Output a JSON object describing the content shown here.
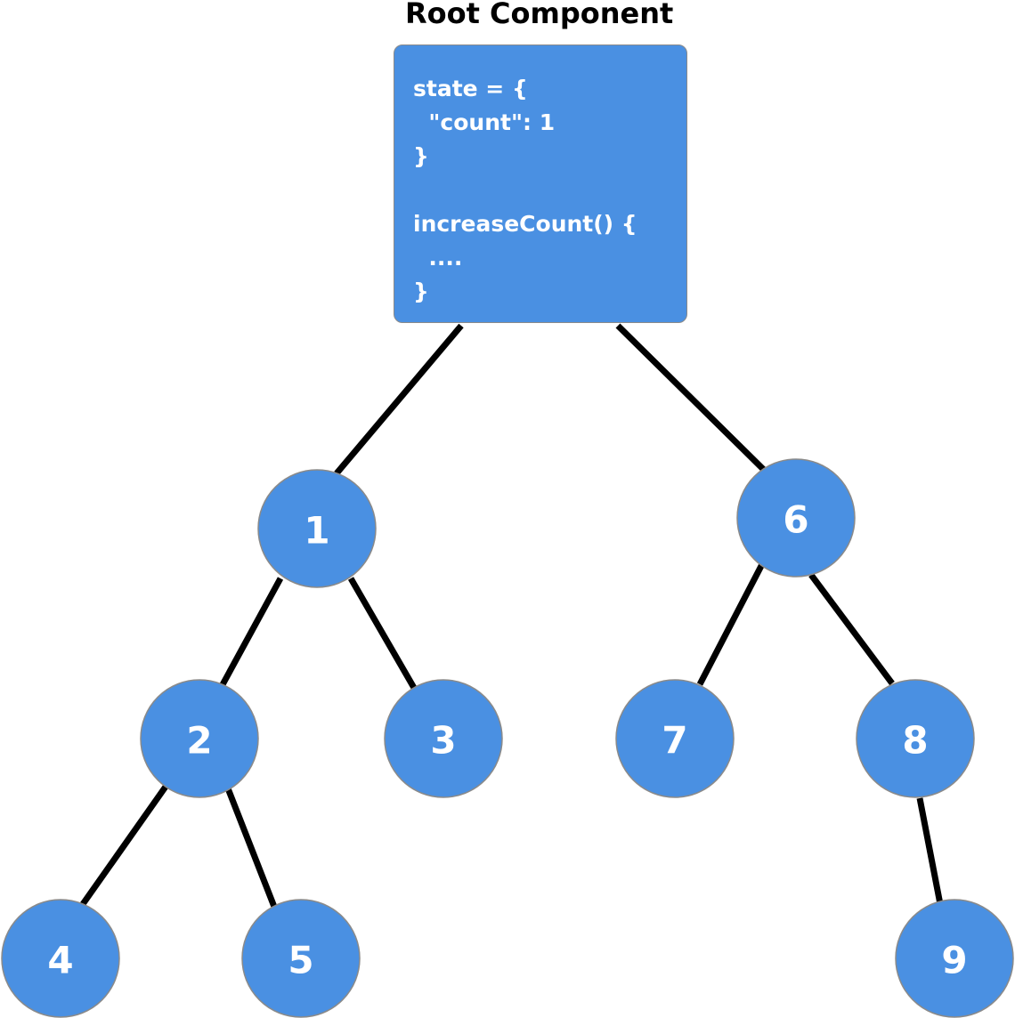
{
  "colors": {
    "node_fill": "#4a90e2",
    "edge": "#000000",
    "text": "#ffffff"
  },
  "root": {
    "title": "Root Component",
    "code_lines": [
      "state = {",
      "  \"count\": 1",
      "}",
      "",
      "increaseCount() {",
      "  ....",
      "}"
    ]
  },
  "nodes": [
    {
      "id": "1",
      "label": "1"
    },
    {
      "id": "2",
      "label": "2"
    },
    {
      "id": "3",
      "label": "3"
    },
    {
      "id": "4",
      "label": "4"
    },
    {
      "id": "5",
      "label": "5"
    },
    {
      "id": "6",
      "label": "6"
    },
    {
      "id": "7",
      "label": "7"
    },
    {
      "id": "8",
      "label": "8"
    },
    {
      "id": "9",
      "label": "9"
    }
  ],
  "edges": [
    [
      "root",
      "1"
    ],
    [
      "root",
      "6"
    ],
    [
      "1",
      "2"
    ],
    [
      "1",
      "3"
    ],
    [
      "2",
      "4"
    ],
    [
      "2",
      "5"
    ],
    [
      "6",
      "7"
    ],
    [
      "6",
      "8"
    ],
    [
      "8",
      "9"
    ]
  ]
}
